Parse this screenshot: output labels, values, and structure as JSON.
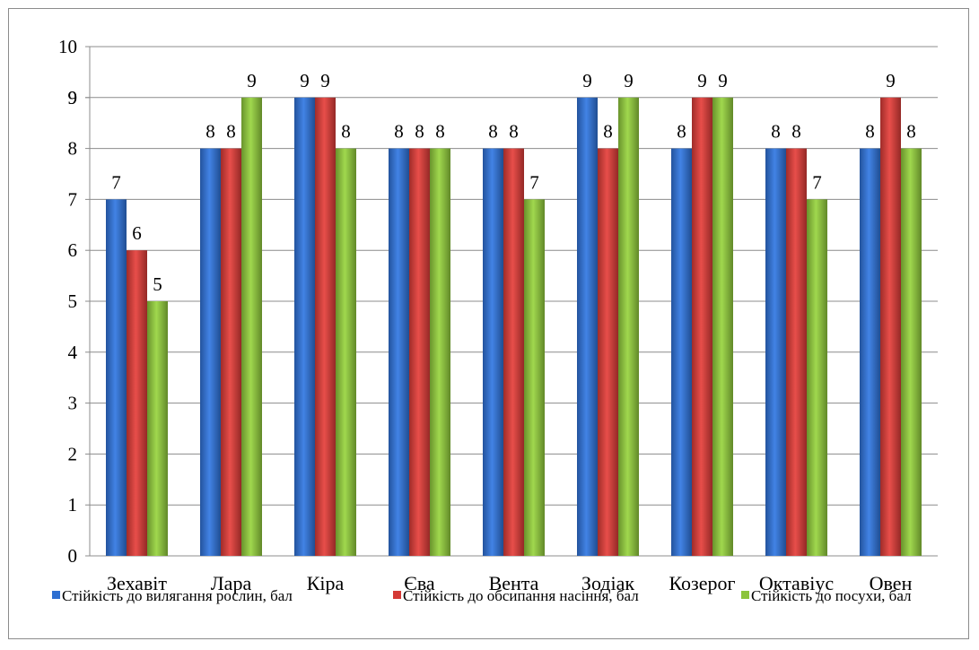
{
  "chart_data": {
    "type": "bar",
    "categories": [
      "Зехавіт",
      "Лара",
      "Кіра",
      "Єва",
      "Вента",
      "Зодіак",
      "Козерог",
      "Октавіус",
      "Овен"
    ],
    "series": [
      {
        "name": "Стійкість до вилягання рослин, бал",
        "values": [
          7,
          8,
          9,
          8,
          8,
          9,
          8,
          8,
          8
        ],
        "color": "#2e6fd1"
      },
      {
        "name": "Стійкість до обсипання насіння, бал",
        "values": [
          6,
          8,
          9,
          8,
          8,
          8,
          9,
          8,
          9
        ],
        "color": "#d43a36"
      },
      {
        "name": "Стійкість до посухи, бал",
        "values": [
          5,
          9,
          8,
          8,
          7,
          9,
          9,
          7,
          8
        ],
        "color": "#8cc43a"
      }
    ],
    "y_ticks": [
      "0",
      "1",
      "2",
      "3",
      "4",
      "5",
      "6",
      "7",
      "8",
      "9",
      "9",
      "10"
    ],
    "ylim": [
      0,
      10
    ],
    "grid": true,
    "legend_position": "bottom",
    "data_labels": true,
    "title": "",
    "xlabel": "",
    "ylabel": ""
  }
}
